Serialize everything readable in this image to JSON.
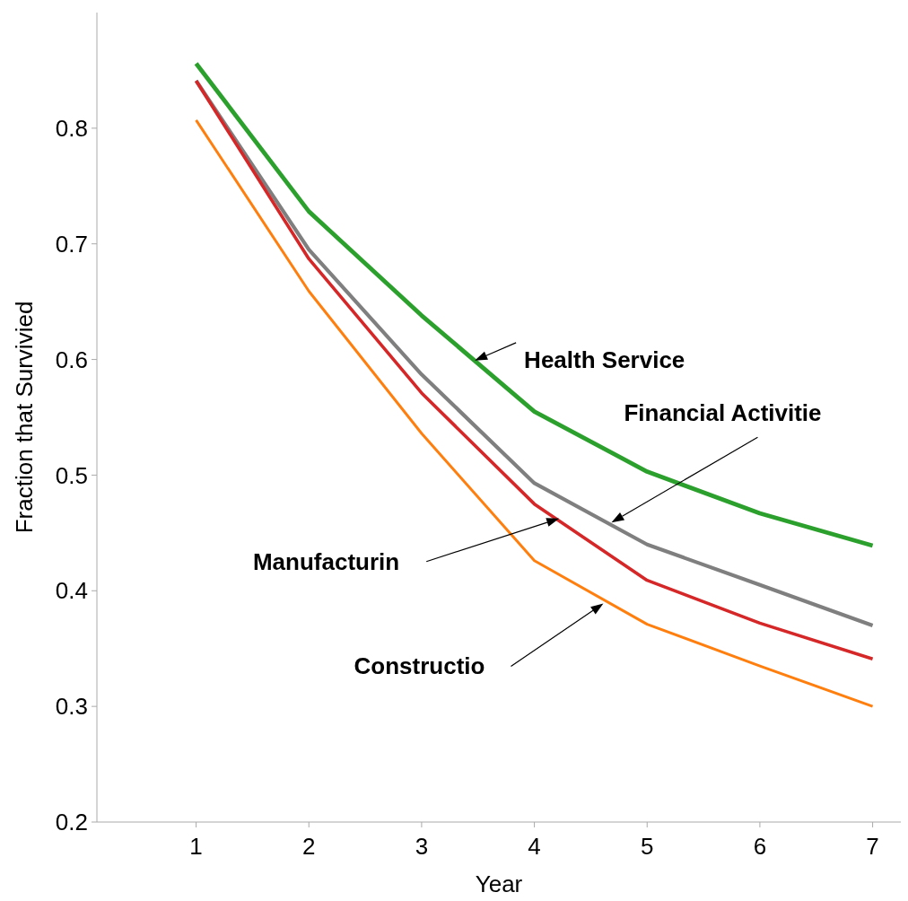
{
  "chart_data": {
    "type": "line",
    "xlabel": "Year",
    "ylabel": "Fraction that Survivied",
    "x": [
      1,
      2,
      3,
      4,
      5,
      6,
      7
    ],
    "series": [
      {
        "color": "#2ca02c",
        "values": [
          0.856,
          0.728,
          0.638,
          0.555,
          0.503,
          0.467,
          0.439
        ]
      },
      {
        "color": "#7f7f7f",
        "values": [
          0.841,
          0.695,
          0.587,
          0.493,
          0.44,
          0.405,
          0.37
        ]
      },
      {
        "color": "#d62728",
        "values": [
          0.841,
          0.687,
          0.571,
          0.475,
          0.409,
          0.372,
          0.341
        ]
      },
      {
        "color": "#ff7f0e",
        "values": [
          0.807,
          0.659,
          0.536,
          0.426,
          0.371,
          0.335,
          0.3
        ]
      }
    ],
    "xlim": [
      0.12,
      7.25
    ],
    "ylim": [
      0.2,
      0.9
    ],
    "xticks": [
      1,
      2,
      3,
      4,
      5,
      6,
      7
    ],
    "yticks": [
      0.2,
      0.3,
      0.4,
      0.5,
      0.6,
      0.7,
      0.8
    ],
    "grid": false,
    "line_style": "solid",
    "annotations": [
      "Health Service",
      "Financial Activitie",
      "Manufacturin",
      "Constructio"
    ]
  }
}
